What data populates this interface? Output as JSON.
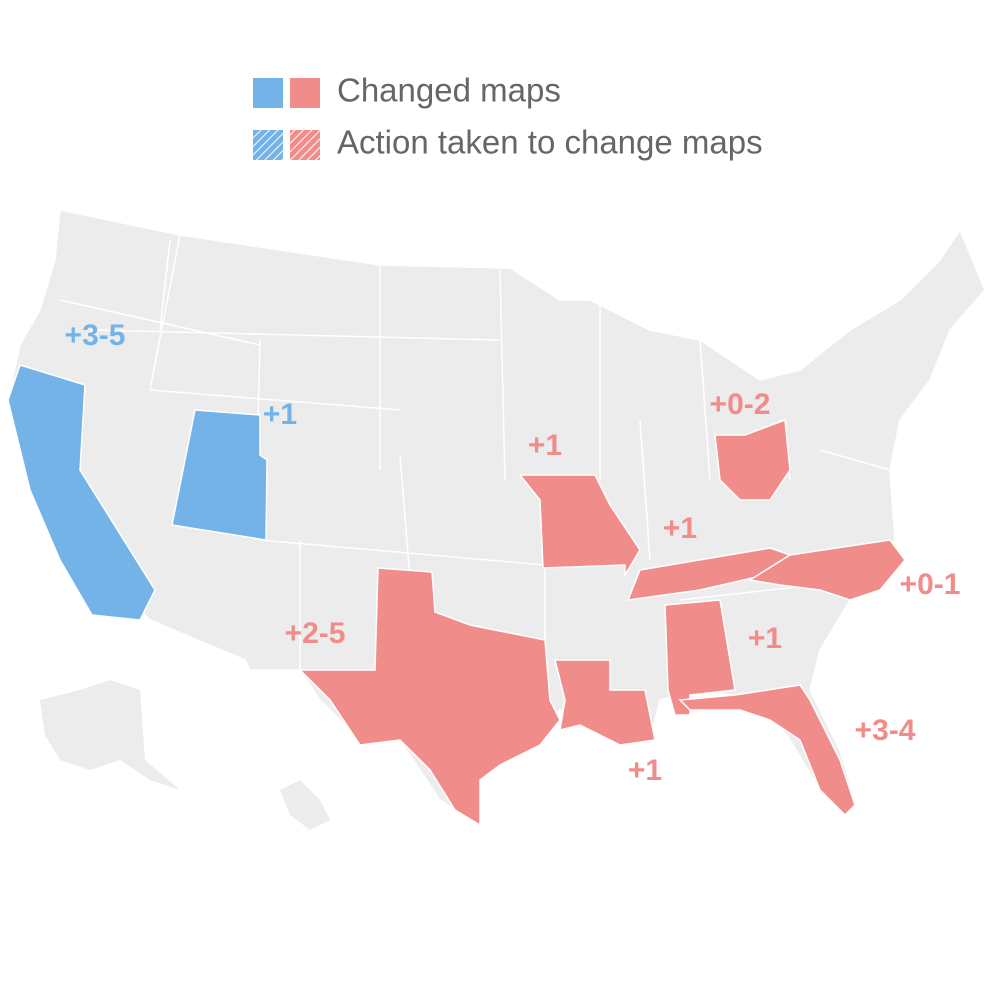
{
  "legend": {
    "colors": [
      "#73b3e7",
      "#f08c8a"
    ],
    "items": [
      {
        "label": "Changed maps",
        "style": "solid"
      },
      {
        "label": "Action taken to change maps",
        "style": "hatched"
      }
    ]
  },
  "map": {
    "labels": [
      {
        "text": "+3-5",
        "color": "#73b3e7"
      },
      {
        "text": "+1",
        "color": "#73b3e7"
      },
      {
        "text": "+2-5",
        "color": "#f08c8a"
      },
      {
        "text": "+1",
        "color": "#f08c8a"
      },
      {
        "text": "+0-2",
        "color": "#f08c8a"
      },
      {
        "text": "+1",
        "color": "#f08c8a"
      },
      {
        "text": "+0-1",
        "color": "#f08c8a"
      },
      {
        "text": "+1",
        "color": "#f08c8a"
      },
      {
        "text": "+3-4",
        "color": "#f08c8a"
      },
      {
        "text": "+1",
        "color": "#f08c8a"
      }
    ]
  }
}
